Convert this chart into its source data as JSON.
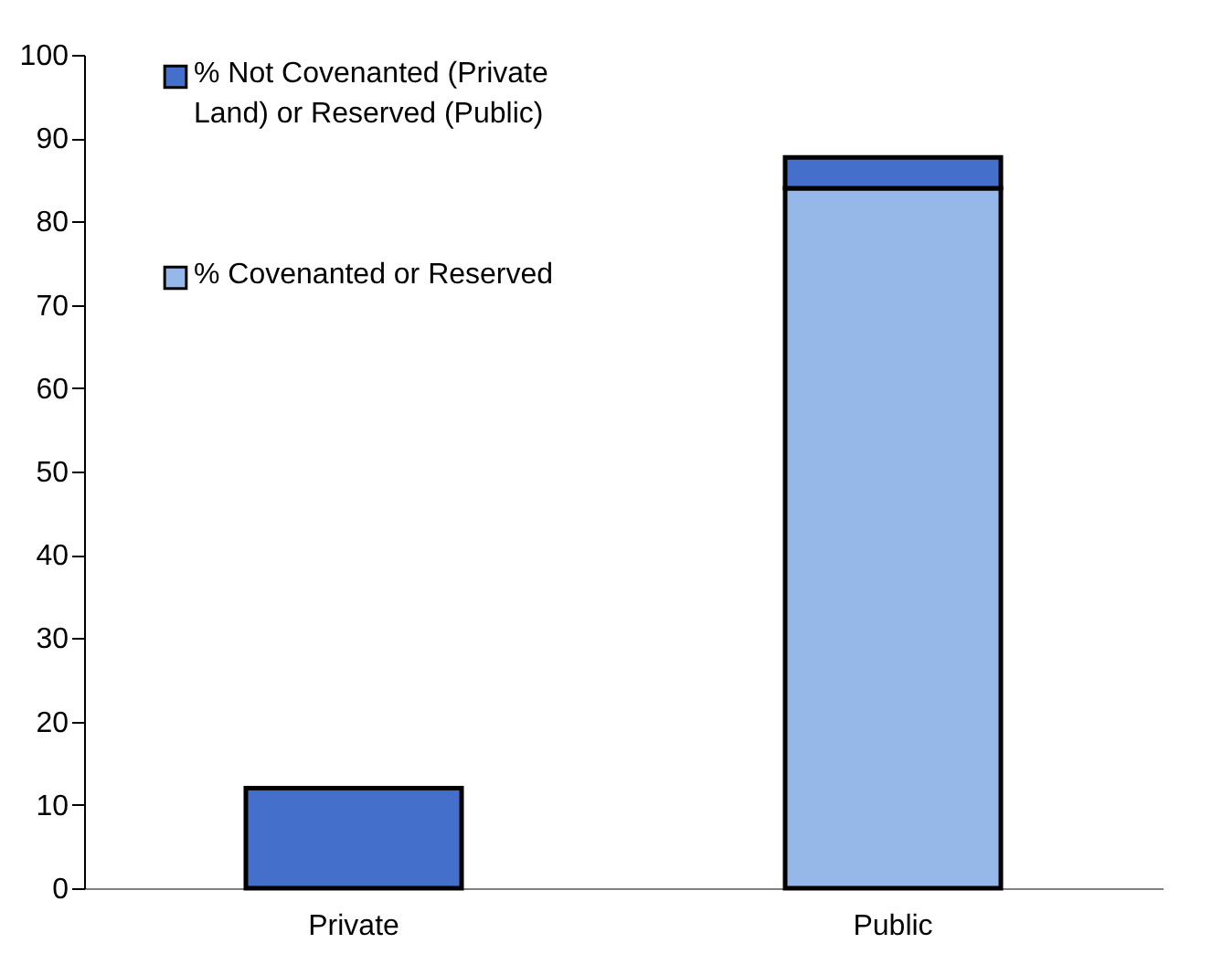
{
  "chart_data": {
    "type": "bar",
    "stacked": true,
    "categories": [
      "Private",
      "Public"
    ],
    "series": [
      {
        "name": "% Covenanted or Reserved",
        "color": "#95b8e8",
        "values": [
          null,
          84
        ]
      },
      {
        "name": "% Not Covenanted (Private Land) or Reserved (Public)",
        "color": "#4470cc",
        "values": [
          12,
          3.7
        ]
      }
    ],
    "ylim": [
      0,
      100
    ],
    "yticks": [
      0,
      10,
      20,
      30,
      40,
      50,
      60,
      70,
      80,
      90,
      100
    ],
    "grid": false,
    "legend": "top left"
  }
}
